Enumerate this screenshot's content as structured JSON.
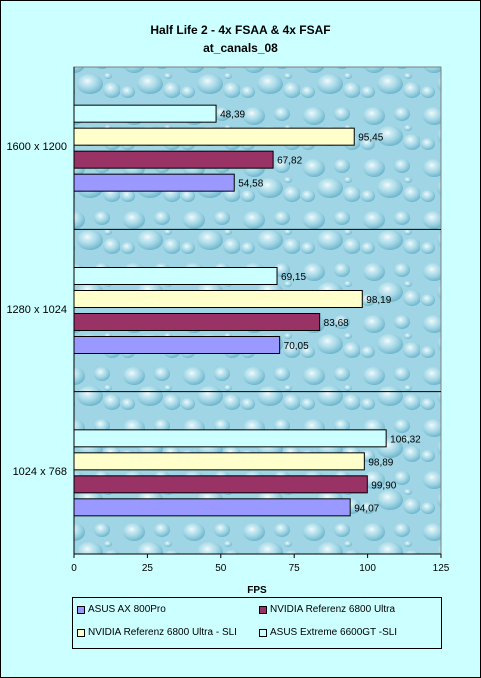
{
  "chart_data": {
    "type": "bar",
    "orientation": "horizontal",
    "title": "Half Life 2 - 4x FSAA & 4x FSAF",
    "subtitle": "at_canals_08",
    "xlabel": "FPS",
    "ylabel": "",
    "xlim": [
      0,
      125
    ],
    "xticks": [
      0,
      25,
      50,
      75,
      100,
      125
    ],
    "categories": [
      "1600 x 1200",
      "1280 x 1024",
      "1024 x 768"
    ],
    "series": [
      {
        "name": "ASUS AX 800Pro",
        "color": "#9999ff",
        "values": [
          54.58,
          70.05,
          94.07
        ],
        "labels": [
          "54,58",
          "70,05",
          "94,07"
        ]
      },
      {
        "name": "NVIDIA  Referenz 6800 Ultra",
        "color": "#993366",
        "values": [
          67.82,
          83.68,
          99.9
        ],
        "labels": [
          "67,82",
          "83,68",
          "99,90"
        ]
      },
      {
        "name": "NVIDIA  Referenz 6800 Ultra - SLI",
        "color": "#ffffcc",
        "values": [
          95.45,
          98.19,
          98.89
        ],
        "labels": [
          "95,45",
          "98,19",
          "98,89"
        ]
      },
      {
        "name": "ASUS Extreme 6600GT -SLI",
        "color": "#ccffff",
        "values": [
          48.39,
          69.15,
          106.32
        ],
        "labels": [
          "48,39",
          "69,15",
          "106,32"
        ]
      }
    ],
    "legend_position": "bottom",
    "grid": false
  }
}
